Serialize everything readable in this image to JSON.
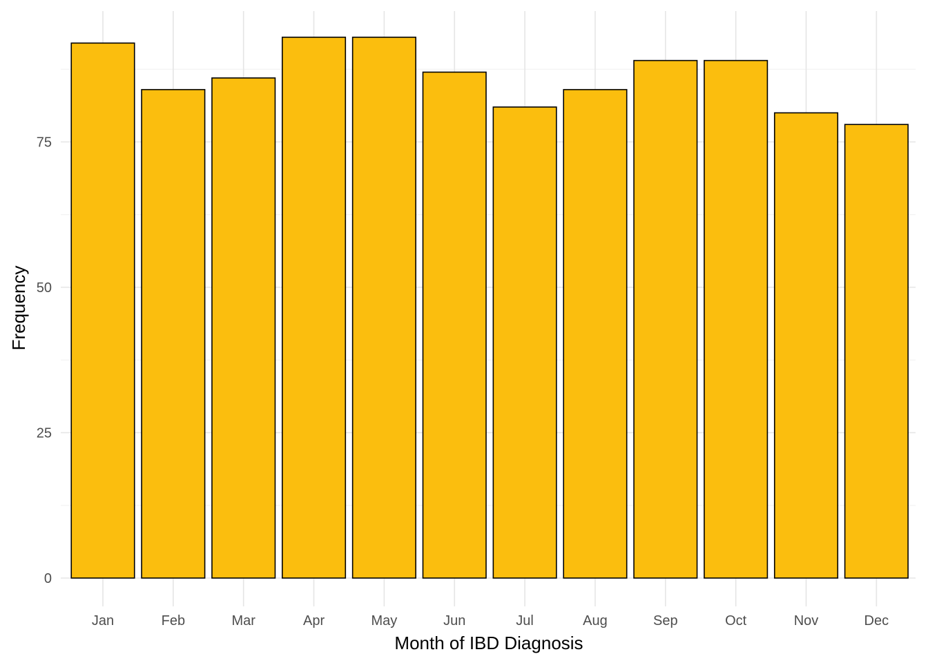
{
  "chart_data": {
    "type": "bar",
    "title": "",
    "xlabel": "Month of IBD Diagnosis",
    "ylabel": "Frequency",
    "categories": [
      "Jan",
      "Feb",
      "Mar",
      "Apr",
      "May",
      "Jun",
      "Jul",
      "Aug",
      "Sep",
      "Oct",
      "Nov",
      "Dec"
    ],
    "values": [
      92,
      84,
      86,
      93,
      93,
      87,
      81,
      84,
      89,
      89,
      80,
      78
    ],
    "ylim": [
      0,
      97.5
    ],
    "yticks": [
      0,
      25,
      50,
      75
    ],
    "grid": true,
    "legend": "none",
    "bar_color": "#FBBE0E",
    "bar_outline": "#000000"
  }
}
